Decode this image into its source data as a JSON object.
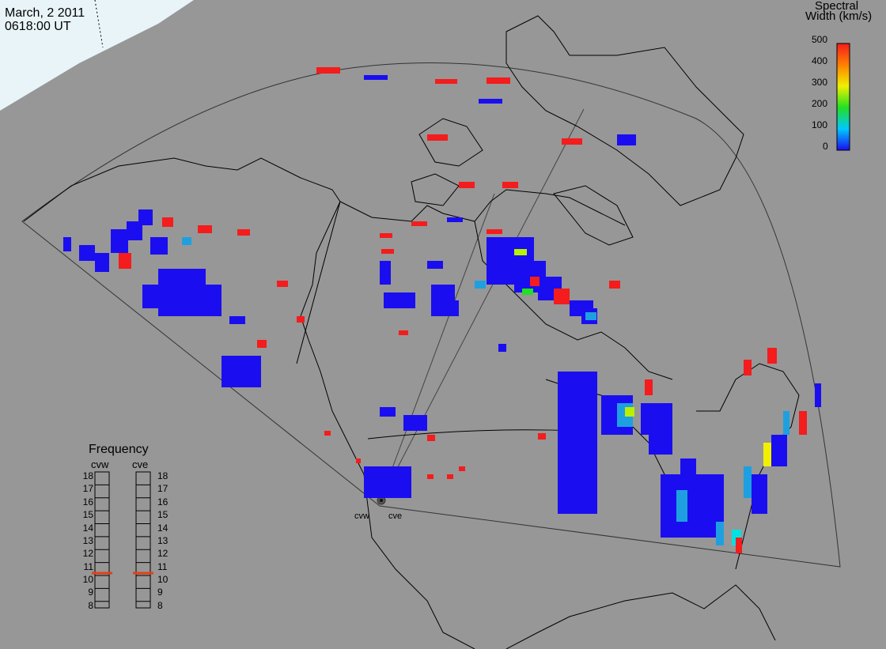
{
  "header": {
    "date": "March, 2 2011",
    "time": "0618:00 UT"
  },
  "colorbar": {
    "title_line1": "Spectral",
    "title_line2": "Width (km/s)",
    "ticks": [
      "500",
      "400",
      "300",
      "200",
      "100",
      "0"
    ],
    "range": [
      0,
      500
    ]
  },
  "frequency_panel": {
    "title": "Frequency",
    "radars": [
      {
        "name": "cvw",
        "current_mhz": 10.6,
        "marker_color": "#e0401a"
      },
      {
        "name": "cve",
        "current_mhz": 10.6,
        "marker_color": "#e0401a"
      }
    ],
    "ticks": [
      "18",
      "17",
      "16",
      "15",
      "14",
      "13",
      "12",
      "11",
      "10",
      "9",
      "8"
    ]
  },
  "sites": [
    {
      "name": "cvw"
    },
    {
      "name": "cve"
    }
  ],
  "colors": {
    "background": "#979797",
    "night_region": "#e8f4f8",
    "low_width": "#1a0ef0",
    "high_width": "#f41c1c"
  }
}
